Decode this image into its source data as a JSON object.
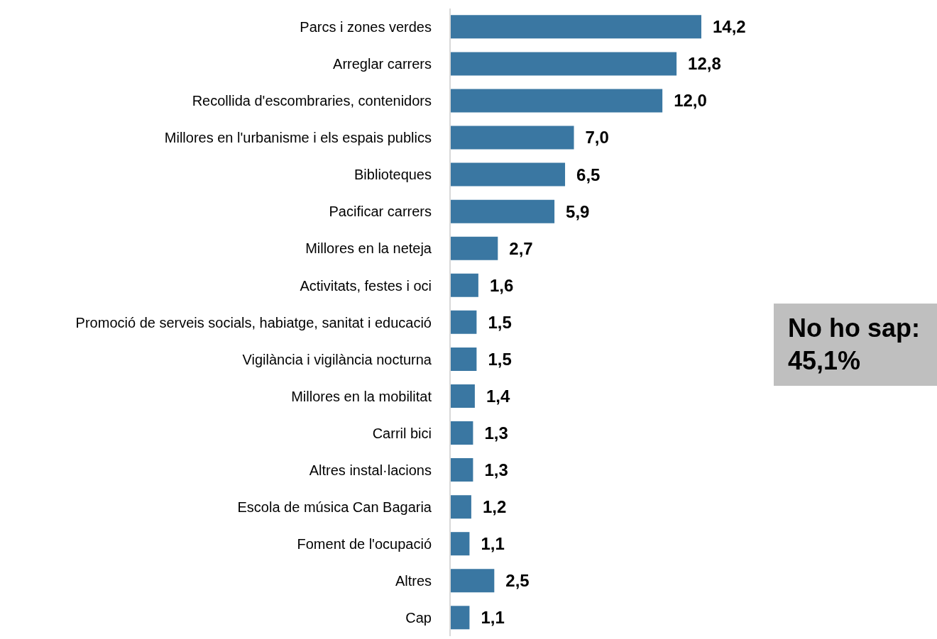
{
  "chart_data": {
    "type": "bar",
    "orientation": "horizontal",
    "categories": [
      "Parcs i zones verdes",
      "Arreglar carrers",
      "Recollida d'escombraries, contenidors",
      "Millores en l'urbanisme i els espais publics",
      "Biblioteques",
      "Pacificar carrers",
      "Millores en la neteja",
      "Activitats, festes i oci",
      "Promoció de serveis socials, habiatge, sanitat i educació",
      "Vigilància i vigilància nocturna",
      "Millores en la mobilitat",
      "Carril bici",
      "Altres instal·lacions",
      "Escola de música Can Bagaria",
      "Foment de l'ocupació",
      "Altres",
      "Cap"
    ],
    "values": [
      14.2,
      12.8,
      12.0,
      7.0,
      6.5,
      5.9,
      2.7,
      1.6,
      1.5,
      1.5,
      1.4,
      1.3,
      1.3,
      1.2,
      1.1,
      2.5,
      1.1
    ],
    "value_labels": [
      "14,2",
      "12,8",
      "12,0",
      "7,0",
      "6,5",
      "5,9",
      "2,7",
      "1,6",
      "1,5",
      "1,5",
      "1,4",
      "1,3",
      "1,3",
      "1,2",
      "1,1",
      "2,5",
      "1,1"
    ],
    "color": "#3a77a2",
    "annotations": [
      "No ho sap: 45,1%"
    ],
    "grid": false,
    "legend": false
  }
}
